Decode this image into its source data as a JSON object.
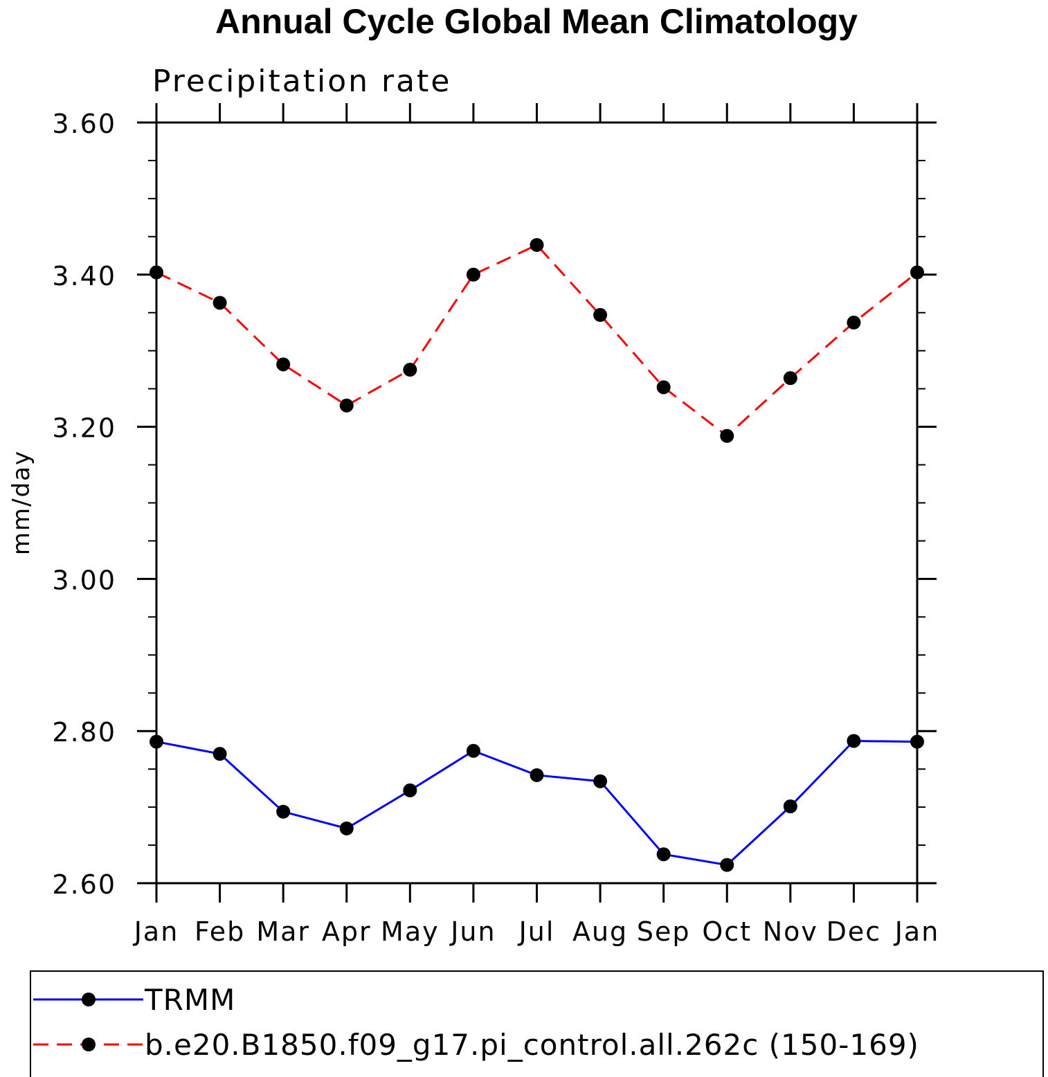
{
  "chart_data": {
    "type": "line",
    "title": "Annual Cycle Global Mean Climatology",
    "subtitle": "Precipitation rate",
    "xlabel": "",
    "ylabel": "mm/day",
    "categories": [
      "Jan",
      "Feb",
      "Mar",
      "Apr",
      "May",
      "Jun",
      "Jul",
      "Aug",
      "Sep",
      "Oct",
      "Nov",
      "Dec",
      "Jan"
    ],
    "ylim": [
      2.6,
      3.6
    ],
    "yticks": [
      "3.60",
      "3.40",
      "3.20",
      "3.00",
      "2.80",
      "2.60"
    ],
    "ytick_values": [
      3.6,
      3.4,
      3.2,
      3.0,
      2.8,
      2.6
    ],
    "grid": false,
    "legend_position": "bottom",
    "series": [
      {
        "name": "TRMM",
        "color": "#0000ff",
        "dash": "solid",
        "marker": "filled-circle",
        "values": [
          2.786,
          2.77,
          2.694,
          2.672,
          2.722,
          2.774,
          2.742,
          2.734,
          2.638,
          2.624,
          2.701,
          2.787,
          2.786
        ]
      },
      {
        "name": "b.e20.B1850.f09_g17.pi_control.all.262c (150-169)",
        "color": "#ff0000",
        "dash": "dashed",
        "marker": "filled-circle",
        "values": [
          3.403,
          3.363,
          3.282,
          3.228,
          3.275,
          3.4,
          3.439,
          3.347,
          3.252,
          3.188,
          3.264,
          3.337,
          3.403
        ]
      }
    ]
  }
}
